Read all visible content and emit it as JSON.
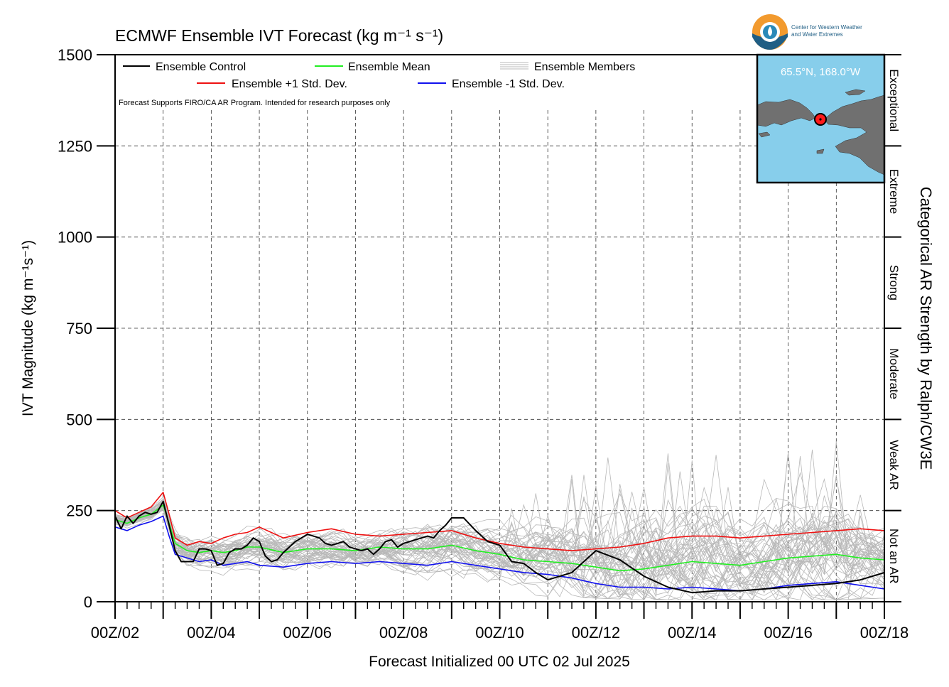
{
  "logo": {
    "line1": "Center for Western Weather",
    "line2": "and Water Extremes"
  },
  "inset": {
    "label": "65.5°N, 168.0°W",
    "ocean_color": "#87CEEB",
    "land_color": "#707070"
  },
  "chart_data": {
    "type": "line",
    "title": "ECMWF Ensemble IVT Forecast (kg m⁻¹ s⁻¹)",
    "xlabel": "Forecast Initialized 00 UTC 02 Jul 2025",
    "ylabel": "IVT Magnitude (kg m⁻¹s⁻¹)",
    "right_axis_label": "Categorical AR Strength by Ralph/CW3E",
    "note": "Forecast Supports FIRO/CA AR Program. Intended for research purposes only",
    "x_unit": "days since 00Z 02 Jul 2025",
    "xlim": [
      0,
      16
    ],
    "ylim": [
      0,
      1500
    ],
    "x_ticks": [
      0,
      2,
      4,
      6,
      8,
      10,
      12,
      14,
      16
    ],
    "x_tick_labels": [
      "00Z/02",
      "00Z/04",
      "00Z/06",
      "00Z/08",
      "00Z/10",
      "00Z/12",
      "00Z/14",
      "00Z/16",
      "00Z/18"
    ],
    "y_ticks": [
      0,
      250,
      500,
      750,
      1000,
      1250,
      1500
    ],
    "y_tick_labels": [
      "0",
      "250",
      "500",
      "750",
      "1000",
      "1250",
      "1500"
    ],
    "grid": true,
    "legend_position": "top-left",
    "ar_categories": [
      {
        "label": "Not an AR",
        "range": [
          0,
          250
        ]
      },
      {
        "label": "Weak AR",
        "range": [
          250,
          500
        ]
      },
      {
        "label": "Moderate",
        "range": [
          500,
          750
        ]
      },
      {
        "label": "Strong",
        "range": [
          750,
          1000
        ]
      },
      {
        "label": "Extreme",
        "range": [
          1000,
          1250
        ]
      },
      {
        "label": "Exceptional",
        "range": [
          1250,
          1500
        ]
      }
    ],
    "series": [
      {
        "name": "Ensemble Control",
        "color": "#000000",
        "x": [
          0,
          0.125,
          0.25,
          0.375,
          0.5,
          0.625,
          0.75,
          0.875,
          1.0,
          1.125,
          1.25,
          1.375,
          1.5,
          1.625,
          1.75,
          1.875,
          2.0,
          2.125,
          2.25,
          2.375,
          2.5,
          2.625,
          2.75,
          2.875,
          3.0,
          3.125,
          3.25,
          3.375,
          3.5,
          3.625,
          3.75,
          3.875,
          4.0,
          4.125,
          4.25,
          4.375,
          4.5,
          4.625,
          4.75,
          4.875,
          5.0,
          5.125,
          5.25,
          5.375,
          5.5,
          5.625,
          5.75,
          5.875,
          6.0,
          6.125,
          6.25,
          6.375,
          6.5,
          6.625,
          6.75,
          6.875,
          7.0,
          7.25,
          7.5,
          7.75,
          8.0,
          8.25,
          8.5,
          8.75,
          9.0,
          9.5,
          10.0,
          10.5,
          11.0,
          11.5,
          12.0,
          12.5,
          13.0,
          13.5,
          14.0,
          14.5,
          15.0,
          15.25,
          15.5,
          15.75,
          16.0
        ],
        "values": [
          235,
          200,
          235,
          215,
          235,
          245,
          240,
          245,
          275,
          210,
          140,
          110,
          110,
          110,
          145,
          145,
          140,
          100,
          105,
          135,
          145,
          145,
          155,
          175,
          165,
          125,
          110,
          115,
          135,
          150,
          165,
          175,
          185,
          180,
          175,
          160,
          155,
          160,
          165,
          150,
          145,
          140,
          145,
          130,
          145,
          165,
          170,
          150,
          160,
          165,
          170,
          175,
          180,
          175,
          195,
          210,
          230,
          230,
          195,
          165,
          155,
          110,
          105,
          80,
          60,
          80,
          140,
          115,
          70,
          40,
          25,
          30,
          30,
          35,
          40,
          45,
          50,
          55,
          60,
          70,
          80
        ]
      },
      {
        "name": "Ensemble Mean",
        "color": "#22ee22",
        "x": [
          0,
          0.25,
          0.5,
          0.75,
          1.0,
          1.125,
          1.25,
          1.5,
          1.75,
          2.0,
          2.25,
          2.5,
          2.75,
          3.0,
          3.5,
          4.0,
          4.5,
          5.0,
          5.5,
          6.0,
          6.5,
          7.0,
          7.5,
          8.0,
          8.5,
          9.0,
          9.5,
          10.0,
          10.5,
          11.0,
          11.5,
          12.0,
          12.5,
          13.0,
          13.5,
          14.0,
          14.5,
          15.0,
          15.5,
          16.0
        ],
        "values": [
          225,
          215,
          230,
          240,
          265,
          215,
          160,
          140,
          135,
          140,
          135,
          140,
          150,
          150,
          135,
          145,
          145,
          140,
          150,
          145,
          145,
          155,
          140,
          130,
          115,
          110,
          105,
          95,
          85,
          90,
          100,
          110,
          105,
          100,
          110,
          120,
          125,
          130,
          120,
          115
        ]
      },
      {
        "name": "Ensemble +1 Std. Dev.",
        "color": "#ee1111",
        "x": [
          0,
          0.25,
          0.5,
          0.75,
          1.0,
          1.125,
          1.25,
          1.5,
          1.75,
          2.0,
          2.25,
          2.5,
          2.75,
          3.0,
          3.5,
          4.0,
          4.5,
          5.0,
          5.5,
          6.0,
          6.5,
          7.0,
          7.5,
          8.0,
          8.5,
          9.0,
          9.5,
          10.0,
          10.5,
          11.0,
          11.5,
          12.0,
          12.5,
          13.0,
          13.5,
          14.0,
          14.5,
          15.0,
          15.5,
          16.0
        ],
        "values": [
          250,
          230,
          245,
          260,
          300,
          240,
          175,
          155,
          165,
          160,
          175,
          185,
          190,
          205,
          175,
          190,
          200,
          185,
          180,
          185,
          190,
          195,
          175,
          160,
          150,
          145,
          140,
          145,
          150,
          160,
          175,
          180,
          180,
          175,
          180,
          185,
          190,
          195,
          200,
          195
        ]
      },
      {
        "name": "Ensemble -1 Std. Dev.",
        "color": "#1111ee",
        "x": [
          0,
          0.25,
          0.5,
          0.75,
          1.0,
          1.125,
          1.25,
          1.5,
          1.75,
          2.0,
          2.25,
          2.5,
          2.75,
          3.0,
          3.5,
          4.0,
          4.5,
          5.0,
          5.5,
          6.0,
          6.5,
          7.0,
          7.5,
          8.0,
          8.5,
          9.0,
          9.5,
          10.0,
          10.5,
          11.0,
          11.5,
          12.0,
          12.5,
          13.0,
          13.5,
          14.0,
          14.5,
          15.0,
          15.5,
          16.0
        ],
        "values": [
          205,
          195,
          210,
          220,
          235,
          180,
          130,
          120,
          110,
          115,
          100,
          105,
          110,
          100,
          95,
          105,
          110,
          105,
          110,
          105,
          100,
          110,
          100,
          90,
          80,
          75,
          65,
          50,
          40,
          40,
          35,
          40,
          35,
          30,
          35,
          45,
          50,
          55,
          45,
          35
        ]
      }
    ],
    "ensemble_members": {
      "name": "Ensemble Members",
      "color": "#b8b8b8",
      "count": 50,
      "envelope": {
        "x": [
          0,
          1,
          1.5,
          2,
          3,
          4,
          5,
          6,
          7,
          8,
          9,
          10,
          11,
          12,
          13,
          14,
          15,
          16
        ],
        "low": [
          180,
          200,
          80,
          70,
          60,
          60,
          65,
          55,
          45,
          25,
          15,
          10,
          5,
          5,
          5,
          5,
          5,
          10
        ],
        "high": [
          275,
          310,
          210,
          220,
          240,
          230,
          235,
          245,
          300,
          240,
          340,
          400,
          420,
          440,
          420,
          430,
          440,
          300
        ]
      }
    }
  }
}
